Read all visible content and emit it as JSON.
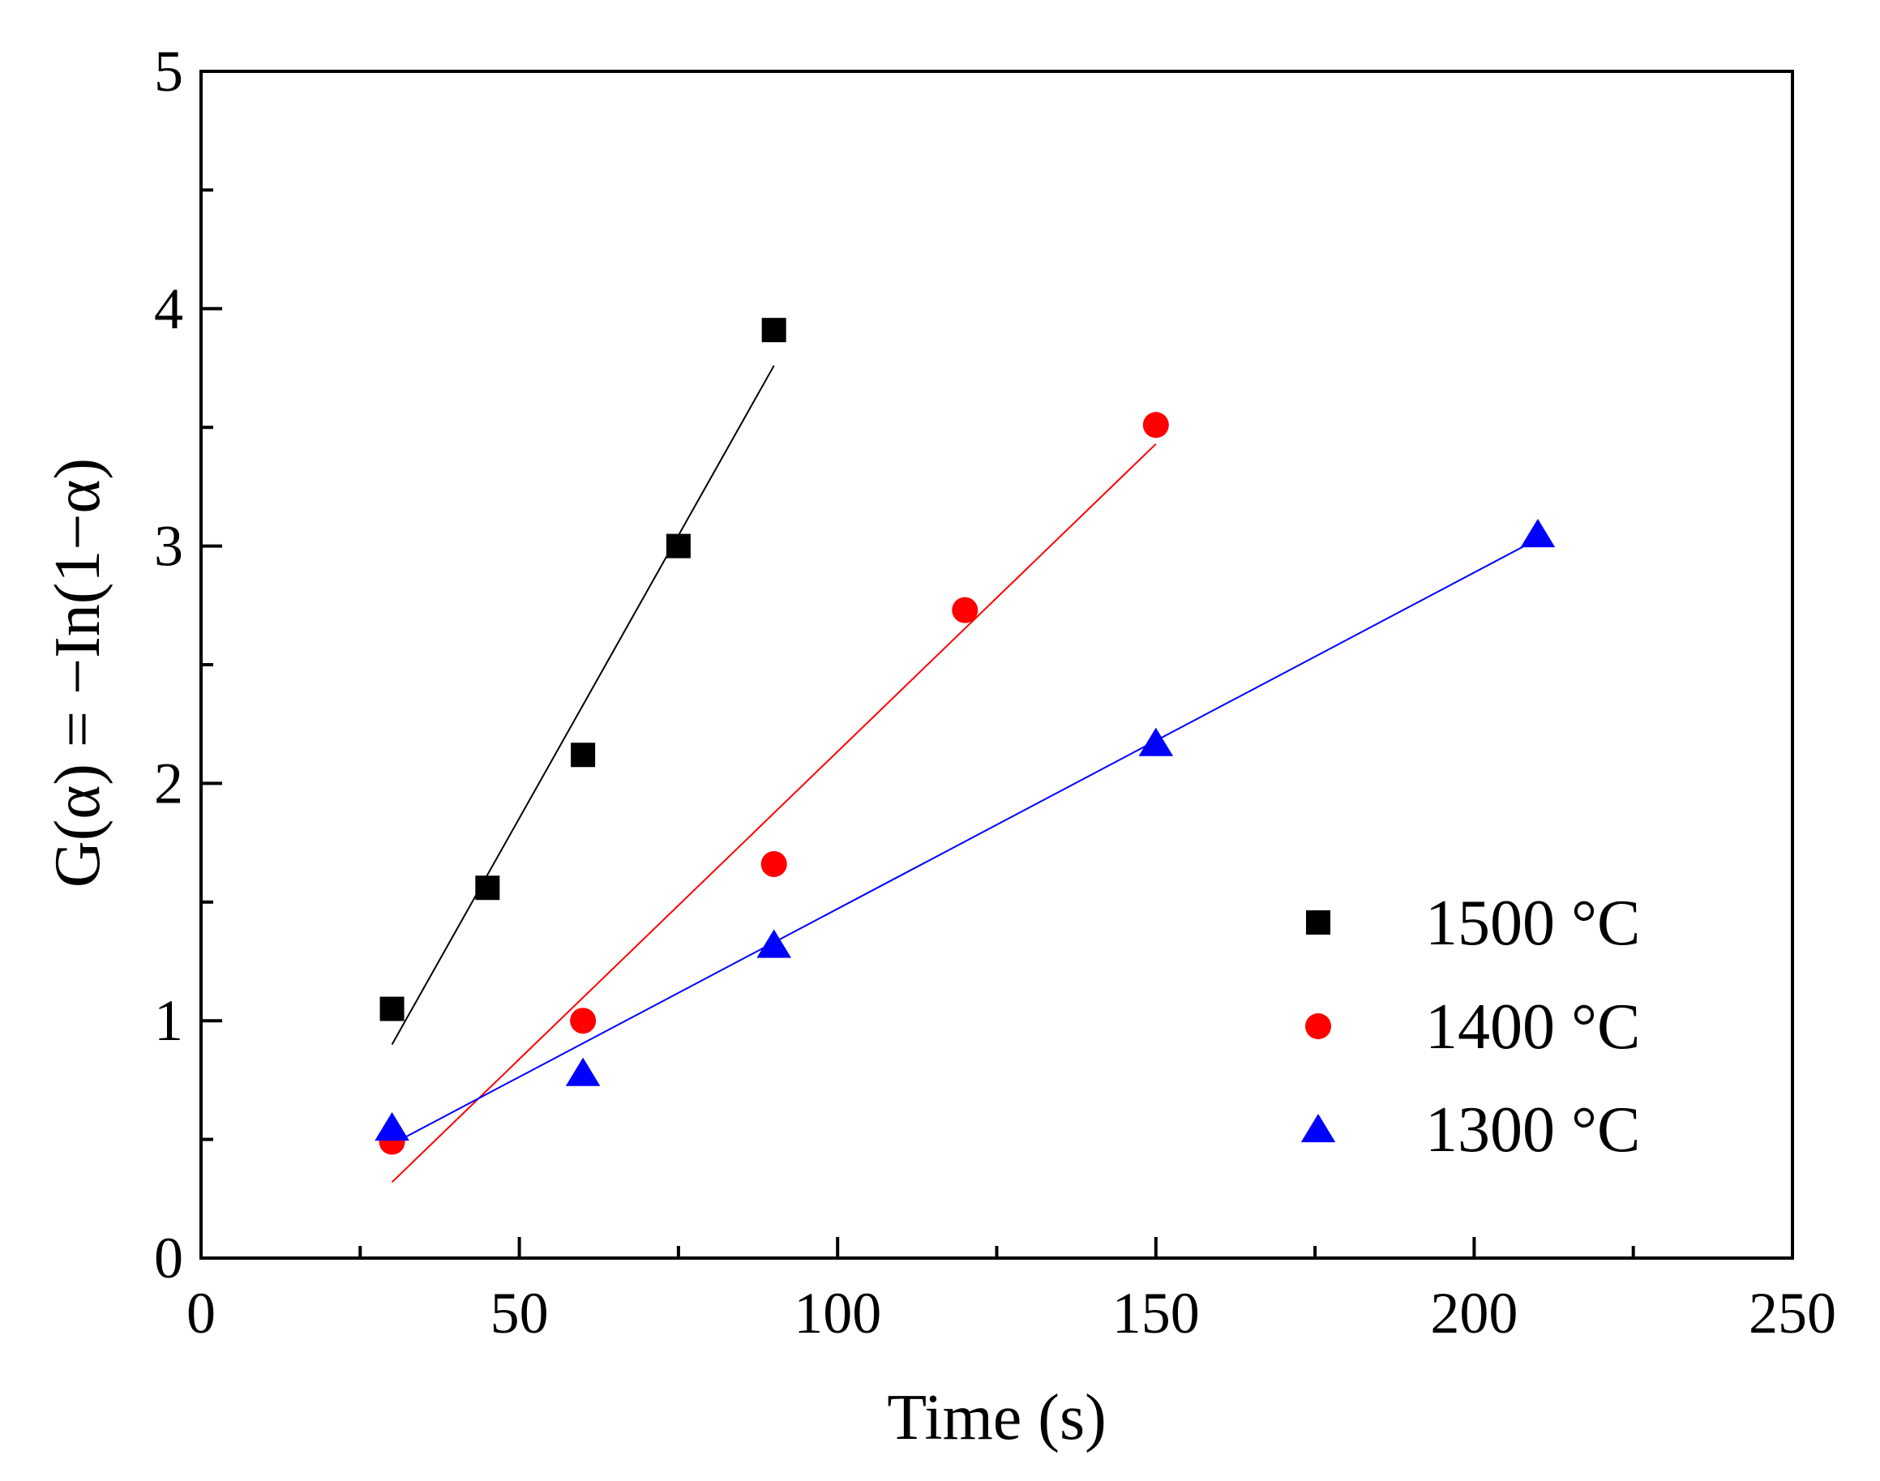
{
  "chart_data": {
    "type": "scatter",
    "title": "",
    "xlabel": "Time (s)",
    "ylabel": "G(α) = −In(1−α)",
    "xlim": [
      0,
      250
    ],
    "ylim": [
      0,
      5
    ],
    "xticks": [
      0,
      50,
      100,
      150,
      200,
      250
    ],
    "yticks": [
      0,
      1,
      2,
      3,
      4,
      5
    ],
    "xtick_labels": [
      "0",
      "50",
      "100",
      "150",
      "200",
      "250"
    ],
    "ytick_labels": [
      "0",
      "1",
      "2",
      "3",
      "4",
      "5"
    ],
    "legend_position": "bottom-right",
    "series": [
      {
        "name": "1500 °C",
        "color": "#000000",
        "marker": "square",
        "x": [
          30,
          45,
          60,
          75,
          90
        ],
        "y": [
          1.05,
          1.56,
          2.12,
          3.0,
          3.91
        ],
        "fit": {
          "x": [
            30,
            90
          ],
          "y": [
            0.9,
            3.76
          ]
        }
      },
      {
        "name": "1400 °C",
        "color": "#ff0000",
        "marker": "circle",
        "x": [
          30,
          60,
          90,
          120,
          150
        ],
        "y": [
          0.49,
          1.0,
          1.66,
          2.73,
          3.51
        ],
        "fit": {
          "x": [
            30,
            150
          ],
          "y": [
            0.32,
            3.43
          ]
        }
      },
      {
        "name": "1300 °C",
        "color": "#0000ff",
        "marker": "triangle",
        "x": [
          30,
          60,
          90,
          150,
          210
        ],
        "y": [
          0.55,
          0.78,
          1.32,
          2.17,
          3.05
        ],
        "fit": {
          "x": [
            30,
            210
          ],
          "y": [
            0.48,
            3.03
          ]
        }
      }
    ]
  }
}
